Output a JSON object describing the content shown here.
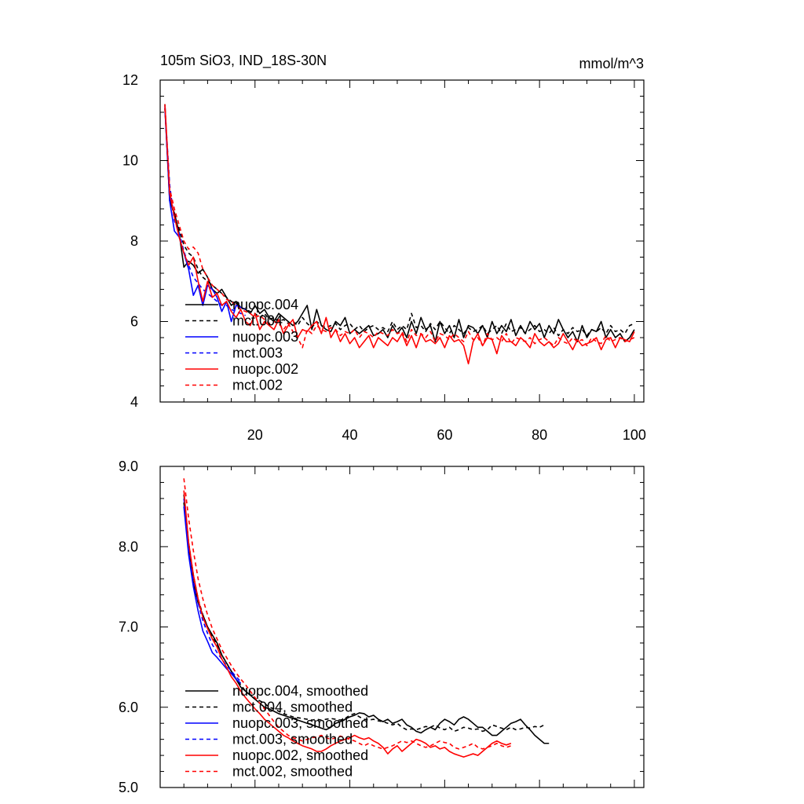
{
  "chart_data": [
    {
      "type": "line",
      "title": "105m SiO3, IND_18S-30N",
      "units": "mmol/m^3",
      "xlim": [
        0,
        102
      ],
      "ylim": [
        4,
        12
      ],
      "xticks": [
        20,
        40,
        60,
        80,
        100
      ],
      "xtick_labels": [
        "20",
        "40",
        "60",
        "80",
        "100"
      ],
      "yticks": [
        4,
        6,
        8,
        10,
        12
      ],
      "ytick_labels": [
        "4",
        "6",
        "8",
        "10",
        "12"
      ],
      "legend": [
        "nuopc.004",
        "mct.004",
        "nuopc.003",
        "mct.003",
        "nuopc.002",
        "mct.002"
      ],
      "series": [
        {
          "name": "nuopc.004",
          "color": "#000000",
          "dashed": false,
          "x_start": 1,
          "values": [
            11.4,
            9.0,
            8.7,
            8.2,
            7.35,
            7.5,
            7.4,
            7.2,
            7.3,
            7.1,
            6.8,
            6.7,
            6.8,
            6.6,
            6.4,
            6.5,
            6.35,
            6.3,
            6.2,
            6.4,
            6.2,
            6.3,
            6.1,
            6.0,
            6.2,
            6.1,
            6.0,
            5.9,
            6.0,
            6.2,
            6.4,
            5.8,
            6.3,
            5.9,
            5.8,
            5.75,
            6.0,
            5.9,
            6.1,
            5.7,
            5.8,
            5.7,
            5.8,
            5.9,
            5.65,
            5.7,
            5.8,
            5.6,
            5.9,
            5.7,
            5.85,
            5.6,
            6.0,
            5.7,
            6.1,
            5.8,
            5.9,
            5.5,
            6.0,
            5.7,
            5.9,
            5.6,
            6.05,
            5.6,
            5.9,
            5.85,
            5.7,
            5.9,
            5.6,
            6.0,
            5.7,
            5.9,
            5.75,
            6.05,
            5.65,
            5.9,
            5.7,
            6.0,
            5.8,
            5.95,
            5.6,
            5.9,
            5.7,
            6.05,
            5.8,
            5.6,
            5.75,
            5.5,
            5.9,
            5.6,
            5.8,
            5.75,
            6.0,
            5.6,
            5.8,
            5.6,
            5.7,
            5.5,
            5.6,
            5.8
          ]
        },
        {
          "name": "mct.004",
          "color": "#000000",
          "dashed": true,
          "x_start": 1,
          "values": [
            11.3,
            9.1,
            8.6,
            8.3,
            7.9,
            7.7,
            7.6,
            7.3,
            7.1,
            7.0,
            6.9,
            6.8,
            6.7,
            6.6,
            6.5,
            6.45,
            6.35,
            6.3,
            6.25,
            6.2,
            6.1,
            6.2,
            6.05,
            6.1,
            6.0,
            6.05,
            5.95,
            6.0,
            5.9,
            6.1,
            5.95,
            5.85,
            6.0,
            5.9,
            5.85,
            5.9,
            5.95,
            5.8,
            5.9,
            5.95,
            5.8,
            5.9,
            5.75,
            5.85,
            5.9,
            5.8,
            5.85,
            5.75,
            6.0,
            5.8,
            5.9,
            5.8,
            6.2,
            5.85,
            5.9,
            5.75,
            5.95,
            5.8,
            6.0,
            5.85,
            5.7,
            5.9,
            5.8,
            5.7,
            5.85,
            5.75,
            5.8,
            5.9,
            5.7,
            5.8,
            5.9,
            5.7,
            5.95,
            5.75,
            5.8,
            5.85,
            5.7,
            5.8,
            5.9,
            5.75,
            5.8,
            5.7,
            5.85,
            5.65,
            5.8,
            5.7,
            5.85,
            5.75,
            5.8,
            5.65,
            5.8,
            5.75,
            5.85,
            5.7,
            5.9,
            5.75,
            5.8,
            5.7,
            5.9,
            5.95
          ]
        },
        {
          "name": "nuopc.003",
          "color": "#0000ff",
          "dashed": false,
          "x_start": 1,
          "values": [
            11.3,
            9.0,
            8.25,
            8.1,
            7.7,
            7.3,
            6.65,
            6.9,
            6.4,
            6.9,
            6.8,
            6.6,
            6.25,
            6.5,
            6.0,
            6.4,
            6.35,
            6.3
          ]
        },
        {
          "name": "mct.003",
          "color": "#0000ff",
          "dashed": true,
          "x_start": 1,
          "values": [
            11.35,
            9.4,
            8.5,
            8.2,
            7.75,
            7.4,
            7.1,
            6.95,
            6.8,
            6.7,
            6.6,
            6.5,
            6.4,
            6.4,
            6.3,
            6.25,
            6.2,
            6.15
          ]
        },
        {
          "name": "nuopc.002",
          "color": "#ff0000",
          "dashed": false,
          "x_start": 1,
          "values": [
            11.4,
            9.2,
            8.6,
            8.1,
            7.7,
            7.4,
            7.6,
            7.0,
            6.5,
            7.0,
            6.6,
            6.7,
            6.4,
            6.5,
            6.25,
            6.1,
            6.3,
            6.0,
            5.9,
            6.2,
            5.8,
            6.0,
            5.9,
            5.8,
            6.05,
            5.7,
            5.9,
            6.05,
            5.6,
            5.8,
            5.75,
            5.9,
            6.0,
            5.7,
            6.1,
            5.6,
            5.8,
            5.5,
            5.7,
            5.45,
            5.6,
            5.35,
            5.5,
            5.65,
            5.35,
            5.6,
            5.5,
            5.4,
            5.6,
            5.5,
            5.7,
            5.4,
            5.65,
            5.35,
            5.7,
            5.5,
            5.55,
            5.45,
            5.6,
            5.35,
            5.65,
            5.5,
            5.55,
            5.4,
            4.95,
            5.5,
            5.7,
            5.4,
            5.6,
            5.55,
            5.2,
            5.65,
            5.5,
            5.5,
            5.4,
            5.6,
            5.5,
            5.35,
            5.7,
            5.5,
            5.4,
            5.5,
            5.35,
            5.45,
            5.7,
            5.5,
            5.3,
            5.55,
            5.4,
            5.45,
            5.5,
            5.6,
            5.3,
            5.55,
            5.6,
            5.35,
            5.6,
            5.55,
            5.5,
            5.75
          ]
        },
        {
          "name": "mct.002",
          "color": "#ff0000",
          "dashed": true,
          "x_start": 1,
          "values": [
            11.3,
            9.3,
            8.8,
            8.4,
            8.0,
            7.8,
            7.85,
            7.7,
            7.3,
            7.1,
            6.9,
            6.8,
            6.7,
            6.55,
            6.5,
            6.4,
            6.3,
            6.25,
            6.2,
            6.1,
            6.15,
            6.05,
            5.95,
            6.0,
            5.95,
            5.8,
            5.95,
            5.75,
            5.6,
            5.35,
            5.8,
            5.7,
            5.9,
            5.8,
            5.75,
            5.85,
            5.8,
            5.65,
            5.75,
            5.7,
            5.8,
            5.6,
            5.75,
            5.7,
            5.6,
            5.75,
            5.7,
            5.65,
            5.8,
            5.7,
            5.75,
            5.5,
            5.8,
            5.65,
            5.7,
            5.6,
            5.75,
            5.5,
            5.7,
            5.65,
            5.55,
            5.7,
            5.6,
            5.5,
            5.75,
            5.55,
            5.6,
            5.4,
            5.7,
            5.55,
            5.6,
            5.5,
            5.7,
            5.45,
            5.6,
            5.55,
            5.5,
            5.6,
            5.45,
            5.55,
            5.6,
            5.5,
            5.4,
            5.6,
            5.5,
            5.45,
            5.6,
            5.5,
            5.55,
            5.4,
            5.6,
            5.5,
            5.45,
            5.65,
            5.5,
            5.55,
            5.6,
            5.5,
            5.55,
            5.6
          ]
        }
      ]
    },
    {
      "type": "line",
      "xlim": [
        0,
        102
      ],
      "ylim": [
        5.0,
        9.0
      ],
      "xticks": [
        20,
        40,
        60,
        80,
        100
      ],
      "yticks": [
        5.0,
        6.0,
        7.0,
        8.0,
        9.0
      ],
      "ytick_labels": [
        "5.0",
        "6.0",
        "7.0",
        "8.0",
        "9.0"
      ],
      "legend": [
        "nuopc.004, smoothed",
        "mct.004, smoothed",
        "nuopc.003, smoothed",
        "mct.003, smoothed",
        "nuopc.002, smoothed",
        "mct.002, smoothed"
      ],
      "series": [
        {
          "name": "nuopc.004, smoothed",
          "color": "#000000",
          "dashed": false,
          "x_start": 5,
          "values": [
            8.55,
            7.95,
            7.55,
            7.3,
            7.15,
            7.0,
            6.9,
            6.8,
            6.65,
            6.55,
            6.45,
            6.35,
            6.25,
            6.2,
            6.15,
            6.1,
            6.05,
            6.0,
            5.98,
            5.95,
            5.92,
            5.9,
            5.88,
            5.86,
            5.84,
            5.82,
            5.8,
            5.78,
            5.76,
            5.74,
            5.72,
            5.75,
            5.8,
            5.82,
            5.85,
            5.88,
            5.9,
            5.93,
            5.92,
            5.88,
            5.9,
            5.85,
            5.82,
            5.85,
            5.8,
            5.82,
            5.85,
            5.78,
            5.75,
            5.7,
            5.68,
            5.72,
            5.75,
            5.72,
            5.8,
            5.85,
            5.82,
            5.78,
            5.85,
            5.88,
            5.85,
            5.8,
            5.75,
            5.75,
            5.7,
            5.65,
            5.65,
            5.7,
            5.75,
            5.8,
            5.82,
            5.85,
            5.78,
            5.72,
            5.65,
            5.6,
            5.55,
            5.55
          ]
        },
        {
          "name": "mct.004, smoothed",
          "color": "#000000",
          "dashed": true,
          "x_start": 5,
          "values": [
            8.65,
            8.05,
            7.65,
            7.35,
            7.15,
            7.0,
            6.88,
            6.78,
            6.65,
            6.55,
            6.45,
            6.35,
            6.28,
            6.2,
            6.15,
            6.1,
            6.08,
            6.05,
            6.0,
            5.98,
            5.95,
            5.92,
            5.9,
            5.88,
            5.87,
            5.86,
            5.85,
            5.84,
            5.85,
            5.84,
            5.85,
            5.86,
            5.85,
            5.84,
            5.86,
            5.9,
            5.92,
            5.88,
            5.85,
            5.84,
            5.85,
            5.83,
            5.82,
            5.8,
            5.78,
            5.8,
            5.75,
            5.72,
            5.73,
            5.72,
            5.74,
            5.76,
            5.75,
            5.78,
            5.74,
            5.72,
            5.75,
            5.7,
            5.72,
            5.75,
            5.74,
            5.72,
            5.73,
            5.7,
            5.72,
            5.78,
            5.76,
            5.74,
            5.72,
            5.75,
            5.72,
            5.73,
            5.75,
            5.74,
            5.76,
            5.75,
            5.78
          ]
        },
        {
          "name": "nuopc.003, smoothed",
          "color": "#0000ff",
          "dashed": false,
          "x_start": 5,
          "values": [
            8.5,
            7.9,
            7.5,
            7.2,
            6.95,
            6.82,
            6.68,
            6.62,
            6.55,
            6.48,
            6.42,
            6.35,
            6.3
          ]
        },
        {
          "name": "mct.003, smoothed",
          "color": "#0000ff",
          "dashed": true,
          "x_start": 5,
          "values": [
            8.6,
            8.0,
            7.6,
            7.3,
            7.08,
            6.92,
            6.78,
            6.68,
            6.6,
            6.52,
            6.45,
            6.38,
            6.32
          ]
        },
        {
          "name": "nuopc.002, smoothed",
          "color": "#ff0000",
          "dashed": false,
          "x_start": 5,
          "values": [
            8.7,
            8.05,
            7.65,
            7.35,
            7.12,
            6.98,
            6.85,
            6.75,
            6.6,
            6.5,
            6.38,
            6.3,
            6.2,
            6.12,
            6.05,
            5.98,
            5.92,
            5.85,
            5.8,
            5.75,
            5.7,
            5.65,
            5.62,
            5.58,
            5.55,
            5.52,
            5.5,
            5.48,
            5.45,
            5.45,
            5.48,
            5.52,
            5.55,
            5.58,
            5.6,
            5.62,
            5.65,
            5.62,
            5.6,
            5.62,
            5.58,
            5.55,
            5.5,
            5.42,
            5.48,
            5.52,
            5.45,
            5.5,
            5.55,
            5.6,
            5.58,
            5.55,
            5.5,
            5.52,
            5.48,
            5.5,
            5.45,
            5.42,
            5.4,
            5.38,
            5.4,
            5.42,
            5.4,
            5.45,
            5.5,
            5.55,
            5.58,
            5.55,
            5.53,
            5.55
          ]
        },
        {
          "name": "mct.002, smoothed",
          "color": "#ff0000",
          "dashed": true,
          "x_start": 5,
          "values": [
            8.85,
            8.35,
            7.95,
            7.6,
            7.35,
            7.15,
            6.98,
            6.85,
            6.72,
            6.62,
            6.52,
            6.43,
            6.35,
            6.28,
            6.2,
            6.12,
            6.05,
            5.98,
            5.9,
            5.82,
            5.75,
            5.7,
            5.65,
            5.62,
            5.6,
            5.58,
            5.6,
            5.62,
            5.63,
            5.65,
            5.62,
            5.6,
            5.62,
            5.64,
            5.62,
            5.6,
            5.58,
            5.55,
            5.52,
            5.55,
            5.52,
            5.5,
            5.48,
            5.5,
            5.52,
            5.55,
            5.58,
            5.56,
            5.58,
            5.55,
            5.52,
            5.5,
            5.52,
            5.55,
            5.58,
            5.56,
            5.55,
            5.5,
            5.48,
            5.5,
            5.52,
            5.55,
            5.5,
            5.48,
            5.5,
            5.52,
            5.55,
            5.52,
            5.5,
            5.52
          ]
        }
      ]
    }
  ]
}
